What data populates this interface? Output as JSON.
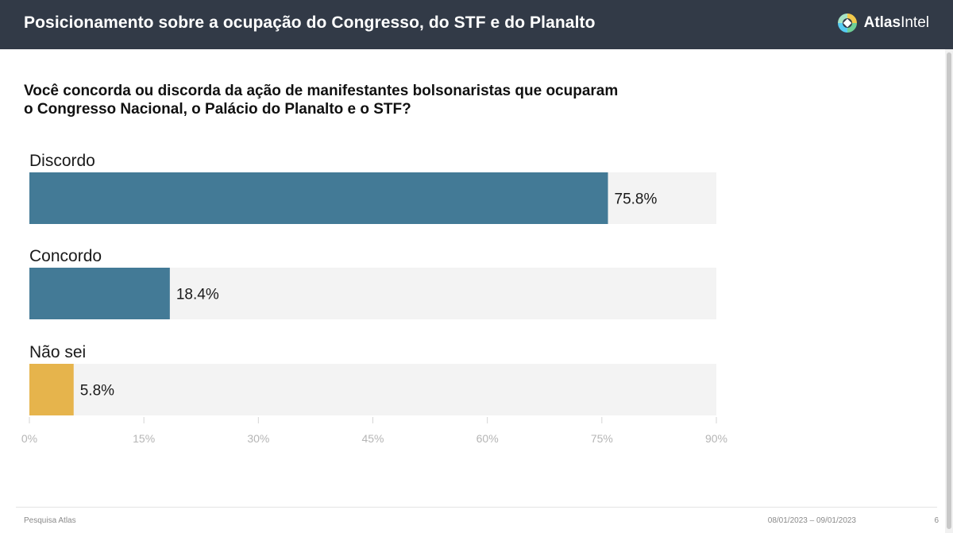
{
  "header": {
    "title": "Posicionamento sobre a ocupação do Congresso, do STF e do Planalto",
    "brand_bold": "Atlas",
    "brand_light": "Intel",
    "logo_icon": "atlasintel-logo-icon"
  },
  "question": "Você concorda ou discorda da ação de manifestantes bolsonaristas que ocuparam o Congresso Nacional, o Palácio do Planalto e o STF?",
  "chart_data": {
    "type": "bar",
    "orientation": "horizontal",
    "title": "Você concorda ou discorda da ação de manifestantes bolsonaristas que ocuparam o Congresso Nacional, o Palácio do Planalto e o STF?",
    "categories": [
      "Discordo",
      "Concordo",
      "Não sei"
    ],
    "values": [
      75.8,
      18.4,
      5.8
    ],
    "value_labels": [
      "75.8%",
      "18.4%",
      "5.8%"
    ],
    "bar_colors": [
      "#437a96",
      "#437a96",
      "#e6b44c"
    ],
    "track_color": "#f3f3f3",
    "xlim": [
      0,
      90
    ],
    "xticks": [
      0,
      15,
      30,
      45,
      60,
      75,
      90
    ],
    "xtick_labels": [
      "0%",
      "15%",
      "30%",
      "45%",
      "60%",
      "75%",
      "90%"
    ],
    "xlabel": "",
    "ylabel": "",
    "grid": false,
    "legend": "none"
  },
  "footer": {
    "source": "Pesquisa Atlas",
    "date_range": "08/01/2023 – 09/01/2023",
    "page": "6"
  },
  "colors": {
    "header_bg": "#323a47",
    "bar_primary": "#437a96",
    "bar_secondary": "#e6b44c",
    "tick_color": "#b5b5b5"
  }
}
